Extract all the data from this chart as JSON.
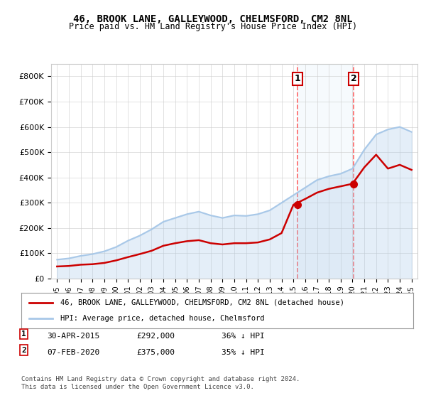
{
  "title": "46, BROOK LANE, GALLEYWOOD, CHELMSFORD, CM2 8NL",
  "subtitle": "Price paid vs. HM Land Registry's House Price Index (HPI)",
  "ylim": [
    0,
    850000
  ],
  "yticks": [
    0,
    100000,
    200000,
    300000,
    400000,
    500000,
    600000,
    700000,
    800000
  ],
  "ytick_labels": [
    "£0",
    "£100K",
    "£200K",
    "£300K",
    "£400K",
    "£500K",
    "£600K",
    "£700K",
    "£800K"
  ],
  "hpi_color": "#a8c8e8",
  "price_color": "#cc0000",
  "marker1_color": "#cc0000",
  "marker2_color": "#cc0000",
  "vline_color": "#ff6666",
  "shade_color": "#d0e8f8",
  "legend_label_red": "46, BROOK LANE, GALLEYWOOD, CHELMSFORD, CM2 8NL (detached house)",
  "legend_label_blue": "HPI: Average price, detached house, Chelmsford",
  "annotation1_label": "1",
  "annotation2_label": "2",
  "note1": "1    30-APR-2015         £292,000        36% ↓ HPI",
  "note2": "2    07-FEB-2020         £375,000        35% ↓ HPI",
  "footer": "Contains HM Land Registry data © Crown copyright and database right 2024.\nThis data is licensed under the Open Government Licence v3.0.",
  "hpi_years": [
    1995,
    1996,
    1997,
    1998,
    1999,
    2000,
    2001,
    2002,
    2003,
    2004,
    2005,
    2006,
    2007,
    2008,
    2009,
    2010,
    2011,
    2012,
    2013,
    2014,
    2015,
    2016,
    2017,
    2018,
    2019,
    2020,
    2021,
    2022,
    2023,
    2024,
    2025
  ],
  "hpi_values": [
    75000,
    80000,
    90000,
    97000,
    108000,
    125000,
    150000,
    170000,
    195000,
    225000,
    240000,
    255000,
    265000,
    250000,
    240000,
    250000,
    248000,
    255000,
    270000,
    300000,
    330000,
    360000,
    390000,
    405000,
    415000,
    435000,
    510000,
    570000,
    590000,
    600000,
    580000
  ],
  "price_years": [
    1995,
    1996,
    1997,
    1998,
    1999,
    2000,
    2001,
    2002,
    2003,
    2004,
    2005,
    2006,
    2007,
    2008,
    2009,
    2010,
    2011,
    2012,
    2013,
    2014,
    2015,
    2016,
    2017,
    2018,
    2019,
    2020,
    2021,
    2022,
    2023,
    2024,
    2025
  ],
  "price_values": [
    48000,
    50000,
    55000,
    57000,
    62000,
    72000,
    85000,
    97000,
    110000,
    130000,
    140000,
    148000,
    152000,
    140000,
    135000,
    140000,
    140000,
    143000,
    155000,
    180000,
    292000,
    315000,
    340000,
    355000,
    365000,
    375000,
    440000,
    490000,
    435000,
    450000,
    430000
  ],
  "sale1_year": 2015.33,
  "sale1_value": 292000,
  "sale2_year": 2020.1,
  "sale2_value": 375000,
  "xlim_min": 1994.5,
  "xlim_max": 2025.5,
  "background_color": "#ffffff",
  "plot_bg_color": "#ffffff",
  "grid_color": "#cccccc"
}
